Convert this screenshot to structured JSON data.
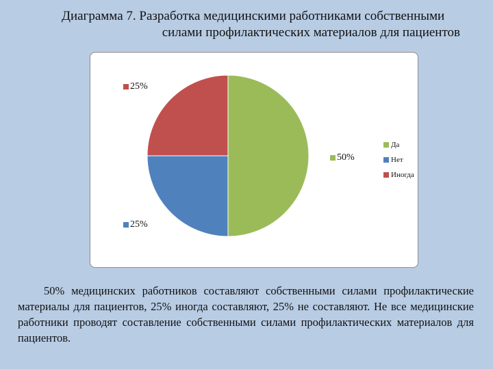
{
  "title": {
    "line1": "Диаграмма 7. Разработка медицинскими работниками собственными",
    "line2": "силами профилактических материалов для пациентов"
  },
  "chart_data": {
    "type": "pie",
    "title": "Диаграмма 7. Разработка медицинскими работниками собственными силами профилактических материалов для пациентов",
    "slices": [
      {
        "name": "Да",
        "value": 50,
        "label": "50%",
        "color": "#9bbb59"
      },
      {
        "name": "Нет",
        "value": 25,
        "label": "25%",
        "color": "#4f81bd"
      },
      {
        "name": "Иногда",
        "value": 25,
        "label": "25%",
        "color": "#c0504d"
      }
    ],
    "legend_position": "right"
  },
  "body_text": "50% медицинских работников составляют собственными силами профилактические материалы для пациентов, 25% иногда составляют, 25% не составляют. Не все медицинские работники проводят составление собственными силами профилактических материалов для пациентов."
}
